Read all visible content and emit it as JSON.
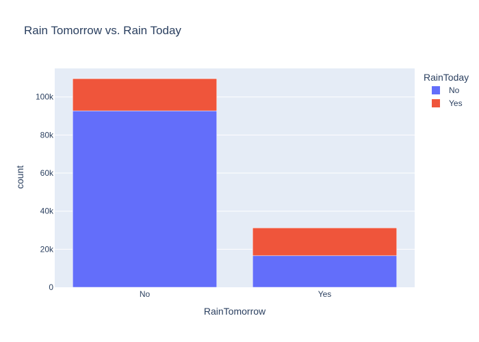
{
  "chart_data": {
    "type": "bar",
    "stacked": true,
    "title": "Rain Tomorrow vs. Rain Today",
    "xlabel": "RainTomorrow",
    "ylabel": "count",
    "categories": [
      "No",
      "Yes"
    ],
    "series": [
      {
        "name": "No",
        "values": [
          92700,
          16600
        ],
        "color": "#636efa"
      },
      {
        "name": "Yes",
        "values": [
          16900,
          14600
        ],
        "color": "#ef553b"
      }
    ],
    "ylim": [
      0,
      115000
    ],
    "yticks": [
      0,
      20000,
      40000,
      60000,
      80000,
      100000
    ],
    "ytick_labels": [
      "0",
      "20k",
      "40k",
      "60k",
      "80k",
      "100k"
    ],
    "legend": {
      "title": "RainToday",
      "position": "top-right"
    },
    "plot_background": "#e5ecf6",
    "grid": true
  }
}
